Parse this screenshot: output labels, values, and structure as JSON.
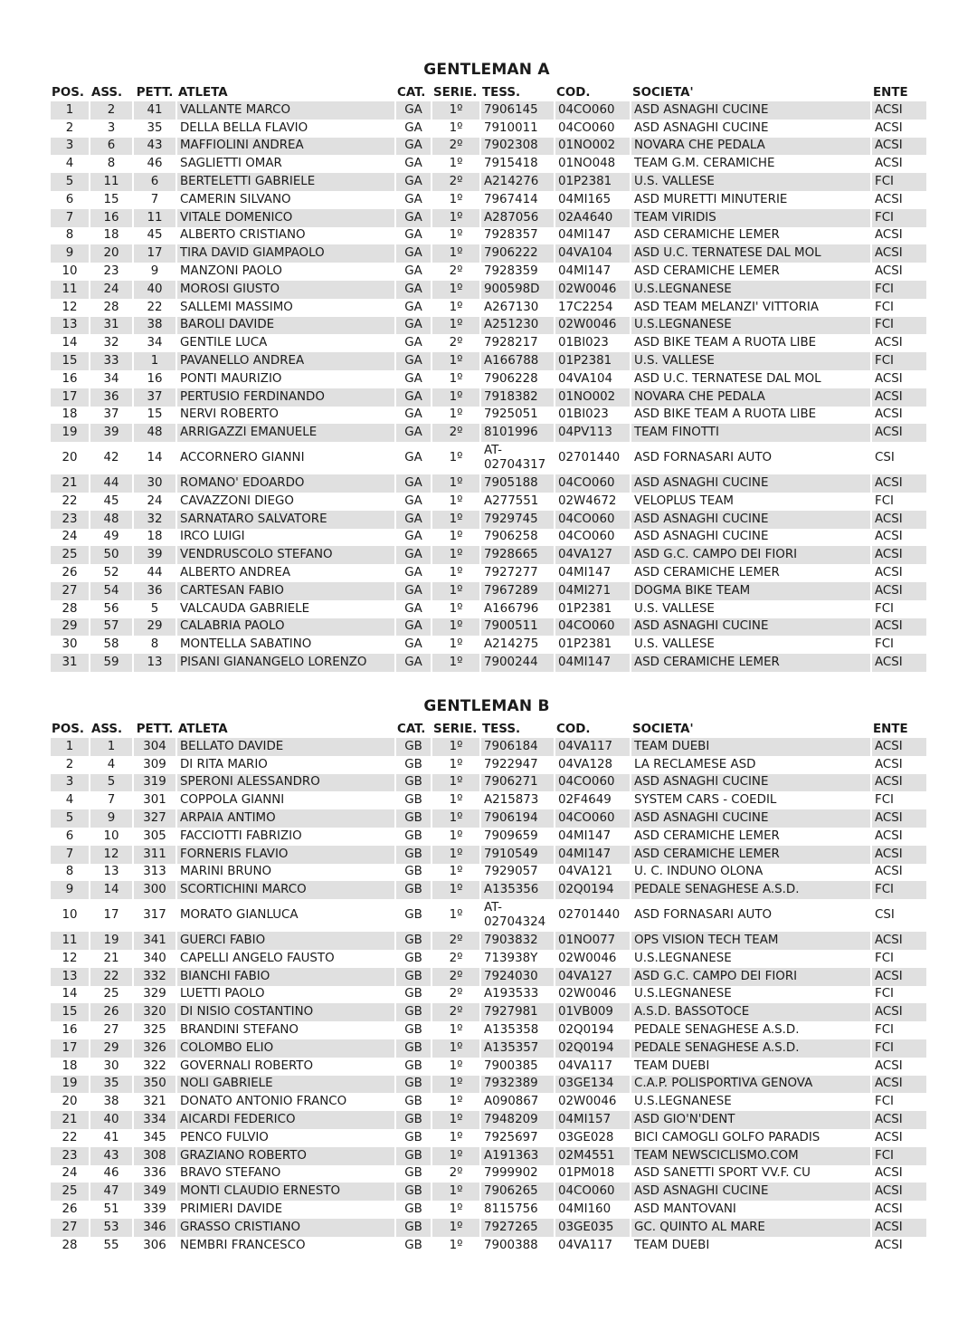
{
  "headers": [
    "POS.",
    "ASS.",
    "PETT.",
    "ATLETA",
    "CAT.",
    "SERIE.",
    "TESS.",
    "COD.",
    "SOCIETA'",
    "ENTE"
  ],
  "sections": [
    {
      "title": "GENTLEMAN A",
      "rows": [
        [
          "1",
          "2",
          "41",
          "VALLANTE MARCO",
          "GA",
          "1º",
          "7906145",
          "04CO060",
          "ASD ASNAGHI CUCINE",
          "ACSI"
        ],
        [
          "2",
          "3",
          "35",
          "DELLA BELLA FLAVIO",
          "GA",
          "1º",
          "7910011",
          "04CO060",
          "ASD ASNAGHI CUCINE",
          "ACSI"
        ],
        [
          "3",
          "6",
          "43",
          "MAFFIOLINI ANDREA",
          "GA",
          "2º",
          "7902308",
          "01NO002",
          "NOVARA CHE PEDALA",
          "ACSI"
        ],
        [
          "4",
          "8",
          "46",
          "SAGLIETTI OMAR",
          "GA",
          "1º",
          "7915418",
          "01NO048",
          "TEAM G.M. CERAMICHE",
          "ACSI"
        ],
        [
          "5",
          "11",
          "6",
          "BERTELETTI GABRIELE",
          "GA",
          "2º",
          "A214276",
          "01P2381",
          "U.S. VALLESE",
          "FCI"
        ],
        [
          "6",
          "15",
          "7",
          "CAMERIN SILVANO",
          "GA",
          "1º",
          "7967414",
          "04MI165",
          "ASD MURETTI MINUTERIE",
          "ACSI"
        ],
        [
          "7",
          "16",
          "11",
          "VITALE DOMENICO",
          "GA",
          "1º",
          "A287056",
          "02A4640",
          "TEAM VIRIDIS",
          "FCI"
        ],
        [
          "8",
          "18",
          "45",
          "ALBERTO CRISTIANO",
          "GA",
          "1º",
          "7928357",
          "04MI147",
          "ASD CERAMICHE LEMER",
          "ACSI"
        ],
        [
          "9",
          "20",
          "17",
          "TIRA DAVID GIAMPAOLO",
          "GA",
          "1º",
          "7906222",
          "04VA104",
          "ASD U.C. TERNATESE DAL MOL",
          "ACSI"
        ],
        [
          "10",
          "23",
          "9",
          "MANZONI PAOLO",
          "GA",
          "2º",
          "7928359",
          "04MI147",
          "ASD CERAMICHE LEMER",
          "ACSI"
        ],
        [
          "11",
          "24",
          "40",
          "MOROSI GIUSTO",
          "GA",
          "1º",
          "900598D",
          "02W0046",
          "U.S.LEGNANESE",
          "FCI"
        ],
        [
          "12",
          "28",
          "22",
          "SALLEMI MASSIMO",
          "GA",
          "1º",
          "A267130",
          "17C2254",
          "ASD TEAM MELANZI' VITTORIA",
          "FCI"
        ],
        [
          "13",
          "31",
          "38",
          "BAROLI DAVIDE",
          "GA",
          "1º",
          "A251230",
          "02W0046",
          "U.S.LEGNANESE",
          "FCI"
        ],
        [
          "14",
          "32",
          "34",
          "GENTILE LUCA",
          "GA",
          "2º",
          "7928217",
          "01BI023",
          "ASD BIKE TEAM A RUOTA LIBE",
          "ACSI"
        ],
        [
          "15",
          "33",
          "1",
          "PAVANELLO ANDREA",
          "GA",
          "1º",
          "A166788",
          "01P2381",
          "U.S. VALLESE",
          "FCI"
        ],
        [
          "16",
          "34",
          "16",
          "PONTI MAURIZIO",
          "GA",
          "1º",
          "7906228",
          "04VA104",
          "ASD U.C. TERNATESE DAL MOL",
          "ACSI"
        ],
        [
          "17",
          "36",
          "37",
          "PERTUSIO FERDINANDO",
          "GA",
          "1º",
          "7918382",
          "01NO002",
          "NOVARA CHE PEDALA",
          "ACSI"
        ],
        [
          "18",
          "37",
          "15",
          "NERVI ROBERTO",
          "GA",
          "1º",
          "7925051",
          "01BI023",
          "ASD BIKE TEAM A RUOTA LIBE",
          "ACSI"
        ],
        [
          "19",
          "39",
          "48",
          "ARRIGAZZI EMANUELE",
          "GA",
          "2º",
          "8101996",
          "04PV113",
          "TEAM FINOTTI",
          "ACSI"
        ],
        [
          "20",
          "42",
          "14",
          "ACCORNERO GIANNI",
          "GA",
          "1º",
          "AT-02704317",
          "02701440",
          "ASD FORNASARI AUTO",
          "CSI"
        ],
        [
          "21",
          "44",
          "30",
          "ROMANO' EDOARDO",
          "GA",
          "1º",
          "7905188",
          "04CO060",
          "ASD ASNAGHI CUCINE",
          "ACSI"
        ],
        [
          "22",
          "45",
          "24",
          "CAVAZZONI DIEGO",
          "GA",
          "1º",
          "A277551",
          "02W4672",
          "VELOPLUS TEAM",
          "FCI"
        ],
        [
          "23",
          "48",
          "32",
          "SARNATARO SALVATORE",
          "GA",
          "1º",
          "7929745",
          "04CO060",
          "ASD ASNAGHI CUCINE",
          "ACSI"
        ],
        [
          "24",
          "49",
          "18",
          "IRCO LUIGI",
          "GA",
          "1º",
          "7906258",
          "04CO060",
          "ASD ASNAGHI CUCINE",
          "ACSI"
        ],
        [
          "25",
          "50",
          "39",
          "VENDRUSCOLO STEFANO",
          "GA",
          "1º",
          "7928665",
          "04VA127",
          "ASD G.C. CAMPO DEI FIORI",
          "ACSI"
        ],
        [
          "26",
          "52",
          "44",
          "ALBERTO ANDREA",
          "GA",
          "1º",
          "7927277",
          "04MI147",
          "ASD CERAMICHE LEMER",
          "ACSI"
        ],
        [
          "27",
          "54",
          "36",
          "CARTESAN FABIO",
          "GA",
          "1º",
          "7967289",
          "04MI271",
          "DOGMA BIKE TEAM",
          "ACSI"
        ],
        [
          "28",
          "56",
          "5",
          "VALCAUDA GABRIELE",
          "GA",
          "1º",
          "A166796",
          "01P2381",
          "U.S. VALLESE",
          "FCI"
        ],
        [
          "29",
          "57",
          "29",
          "CALABRIA PAOLO",
          "GA",
          "1º",
          "7900511",
          "04CO060",
          "ASD ASNAGHI CUCINE",
          "ACSI"
        ],
        [
          "30",
          "58",
          "8",
          "MONTELLA SABATINO",
          "GA",
          "1º",
          "A214275",
          "01P2381",
          "U.S. VALLESE",
          "FCI"
        ],
        [
          "31",
          "59",
          "13",
          "PISANI GIANANGELO LORENZO",
          "GA",
          "1º",
          "7900244",
          "04MI147",
          "ASD CERAMICHE LEMER",
          "ACSI"
        ]
      ]
    },
    {
      "title": "GENTLEMAN B",
      "rows": [
        [
          "1",
          "1",
          "304",
          "BELLATO DAVIDE",
          "GB",
          "1º",
          "7906184",
          "04VA117",
          "TEAM DUEBI",
          "ACSI"
        ],
        [
          "2",
          "4",
          "309",
          "DI RITA MARIO",
          "GB",
          "1º",
          "7922947",
          "04VA128",
          "LA RECLAMESE ASD",
          "ACSI"
        ],
        [
          "3",
          "5",
          "319",
          "SPERONI ALESSANDRO",
          "GB",
          "1º",
          "7906271",
          "04CO060",
          "ASD ASNAGHI CUCINE",
          "ACSI"
        ],
        [
          "4",
          "7",
          "301",
          "COPPOLA GIANNI",
          "GB",
          "1º",
          "A215873",
          "02F4649",
          "SYSTEM CARS - COEDIL",
          "FCI"
        ],
        [
          "5",
          "9",
          "327",
          "ARPAIA ANTIMO",
          "GB",
          "1º",
          "7906194",
          "04CO060",
          "ASD ASNAGHI CUCINE",
          "ACSI"
        ],
        [
          "6",
          "10",
          "305",
          "FACCIOTTI FABRIZIO",
          "GB",
          "1º",
          "7909659",
          "04MI147",
          "ASD CERAMICHE LEMER",
          "ACSI"
        ],
        [
          "7",
          "12",
          "311",
          "FORNERIS FLAVIO",
          "GB",
          "1º",
          "7910549",
          "04MI147",
          "ASD CERAMICHE LEMER",
          "ACSI"
        ],
        [
          "8",
          "13",
          "313",
          "MARINI BRUNO",
          "GB",
          "1º",
          "7929057",
          "04VA121",
          "U. C. INDUNO OLONA",
          "ACSI"
        ],
        [
          "9",
          "14",
          "300",
          "SCORTICHINI MARCO",
          "GB",
          "1º",
          "A135356",
          "02Q0194",
          "PEDALE SENAGHESE A.S.D.",
          "FCI"
        ],
        [
          "10",
          "17",
          "317",
          "MORATO GIANLUCA",
          "GB",
          "1º",
          "AT-02704324",
          "02701440",
          "ASD FORNASARI AUTO",
          "CSI"
        ],
        [
          "11",
          "19",
          "341",
          "GUERCI FABIO",
          "GB",
          "2º",
          "7903832",
          "01NO077",
          "OPS VISION TECH TEAM",
          "ACSI"
        ],
        [
          "12",
          "21",
          "340",
          "CAPELLI ANGELO FAUSTO",
          "GB",
          "2º",
          "713938Y",
          "02W0046",
          "U.S.LEGNANESE",
          "FCI"
        ],
        [
          "13",
          "22",
          "332",
          "BIANCHI FABIO",
          "GB",
          "2º",
          "7924030",
          "04VA127",
          "ASD G.C. CAMPO DEI FIORI",
          "ACSI"
        ],
        [
          "14",
          "25",
          "329",
          "LUETTI PAOLO",
          "GB",
          "2º",
          "A193533",
          "02W0046",
          "U.S.LEGNANESE",
          "FCI"
        ],
        [
          "15",
          "26",
          "320",
          "DI NISIO COSTANTINO",
          "GB",
          "2º",
          "7927981",
          "01VB009",
          "A.S.D. BASSOTOCE",
          "ACSI"
        ],
        [
          "16",
          "27",
          "325",
          "BRANDINI STEFANO",
          "GB",
          "1º",
          "A135358",
          "02Q0194",
          "PEDALE SENAGHESE A.S.D.",
          "FCI"
        ],
        [
          "17",
          "29",
          "326",
          "COLOMBO ELIO",
          "GB",
          "1º",
          "A135357",
          "02Q0194",
          "PEDALE SENAGHESE A.S.D.",
          "FCI"
        ],
        [
          "18",
          "30",
          "322",
          "GOVERNALI ROBERTO",
          "GB",
          "1º",
          "7900385",
          "04VA117",
          "TEAM DUEBI",
          "ACSI"
        ],
        [
          "19",
          "35",
          "350",
          "NOLI GABRIELE",
          "GB",
          "1º",
          "7932389",
          "03GE134",
          "C.A.P. POLISPORTIVA GENOVA",
          "ACSI"
        ],
        [
          "20",
          "38",
          "321",
          "DONATO ANTONIO FRANCO",
          "GB",
          "1º",
          "A090867",
          "02W0046",
          "U.S.LEGNANESE",
          "FCI"
        ],
        [
          "21",
          "40",
          "334",
          "AICARDI FEDERICO",
          "GB",
          "1º",
          "7948209",
          "04MI157",
          "ASD GIO'N'DENT",
          "ACSI"
        ],
        [
          "22",
          "41",
          "345",
          "PENCO FULVIO",
          "GB",
          "1º",
          "7925697",
          "03GE028",
          "BICI CAMOGLI GOLFO PARADIS",
          "ACSI"
        ],
        [
          "23",
          "43",
          "308",
          "GRAZIANO ROBERTO",
          "GB",
          "1º",
          "A191363",
          "02M4551",
          "TEAM NEWSCICLISMO.COM",
          "FCI"
        ],
        [
          "24",
          "46",
          "336",
          "BRAVO STEFANO",
          "GB",
          "2º",
          "7999902",
          "01PM018",
          "ASD SANETTI SPORT VV.F. CU",
          "ACSI"
        ],
        [
          "25",
          "47",
          "349",
          "MONTI CLAUDIO ERNESTO",
          "GB",
          "1º",
          "7906265",
          "04CO060",
          "ASD ASNAGHI CUCINE",
          "ACSI"
        ],
        [
          "26",
          "51",
          "339",
          "PRIMIERI DAVIDE",
          "GB",
          "1º",
          "8115756",
          "04MI160",
          "ASD MANTOVANI",
          "ACSI"
        ],
        [
          "27",
          "53",
          "346",
          "GRASSO CRISTIANO",
          "GB",
          "1º",
          "7927265",
          "03GE035",
          "GC. QUINTO AL MARE",
          "ACSI"
        ],
        [
          "28",
          "55",
          "306",
          "NEMBRI FRANCESCO",
          "GB",
          "1º",
          "7900388",
          "04VA117",
          "TEAM DUEBI",
          "ACSI"
        ]
      ]
    }
  ]
}
